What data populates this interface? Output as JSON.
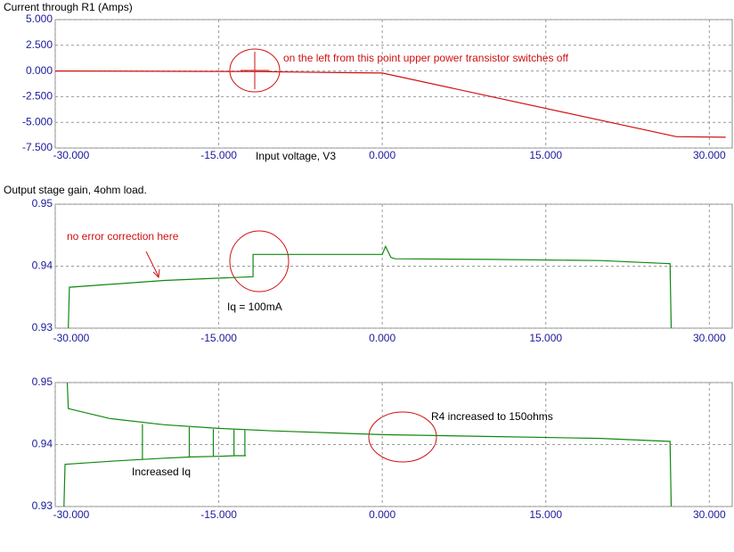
{
  "chart_data": [
    {
      "type": "line",
      "title": "Current through R1 (Amps)",
      "xlabel": "Input voltage, V3",
      "xlim": [
        -30,
        32.1
      ],
      "ylim": [
        -7.5,
        5
      ],
      "grid": true,
      "xticks": [
        {
          "value": -30,
          "label": "-30.000"
        },
        {
          "value": -15,
          "label": "-15.000"
        },
        {
          "value": 0,
          "label": "0.000"
        },
        {
          "value": 15,
          "label": "15.000"
        },
        {
          "value": 30,
          "label": "30.000"
        }
      ],
      "yticks": [
        {
          "value": 5,
          "label": "5.000"
        },
        {
          "value": 2.5,
          "label": "2.500"
        },
        {
          "value": 0,
          "label": "0.000"
        },
        {
          "value": -2.5,
          "label": "-2.500"
        },
        {
          "value": -5,
          "label": "-5.000"
        },
        {
          "value": -7.5,
          "label": "-7.500"
        }
      ],
      "x": [
        -30,
        -12,
        0,
        27,
        31.5
      ],
      "series": [
        {
          "color": "#d01010",
          "values": [
            0,
            -0.05,
            -0.2,
            -6.4,
            -6.45
          ]
        }
      ],
      "annotations": [
        {
          "text": "on the left from this point upper power transistor switches off",
          "color": "#d01010"
        }
      ]
    },
    {
      "type": "line",
      "title": "Output  stage gain, 4ohm load.",
      "xlim": [
        -30,
        32.1
      ],
      "ylim": [
        0.93,
        0.95
      ],
      "grid": true,
      "xticks": [
        {
          "value": -30,
          "label": "-30.000"
        },
        {
          "value": -15,
          "label": "-15.000"
        },
        {
          "value": 0,
          "label": "0.000"
        },
        {
          "value": 15,
          "label": "15.000"
        },
        {
          "value": 30,
          "label": "30.000"
        }
      ],
      "yticks": [
        0.95,
        0.94,
        0.93
      ],
      "x": [
        -28.8,
        -28.7,
        -20,
        -11.85,
        -11.85,
        -5,
        0,
        0.3,
        0.8,
        1.2,
        10,
        20,
        26.4,
        26.5
      ],
      "series": [
        {
          "color": "#118811",
          "values": [
            0.93,
            0.9366,
            0.9377,
            0.9383,
            0.9419,
            0.9419,
            0.9419,
            0.9432,
            0.9414,
            0.9412,
            0.9411,
            0.9409,
            0.9404,
            0.93
          ]
        }
      ],
      "annotations": [
        {
          "text": "no error correction here",
          "color": "#d01010"
        },
        {
          "text": "Iq = 100mA",
          "color": "#000000"
        }
      ]
    },
    {
      "type": "line",
      "xlim": [
        -30,
        32.1
      ],
      "ylim": [
        0.93,
        0.95
      ],
      "grid": true,
      "xticks": [
        {
          "value": -30,
          "label": "-30.000"
        },
        {
          "value": -15,
          "label": "-15.000"
        },
        {
          "value": 0,
          "label": "0.000"
        },
        {
          "value": 15,
          "label": "15.000"
        },
        {
          "value": 30,
          "label": "30.000"
        }
      ],
      "yticks": [
        0.95,
        0.94,
        0.93
      ],
      "series": [
        {
          "color": "#118811",
          "x": [
            -28.9,
            -28.8,
            -25,
            -20,
            -15,
            -10,
            0,
            10,
            20,
            26.4,
            26.5
          ],
          "values": [
            0.95,
            0.9458,
            0.9442,
            0.9432,
            0.9426,
            0.9422,
            0.9416,
            0.9413,
            0.941,
            0.9405,
            0.93
          ]
        },
        {
          "color": "#118811",
          "x": [
            -29.2,
            -29.1,
            -25,
            -22,
            -20,
            -17.5,
            -15,
            -13.5,
            -12.5
          ],
          "values": [
            0.93,
            0.9368,
            0.9373,
            0.9376,
            0.9378,
            0.938,
            0.9381,
            0.9382,
            0.9382
          ]
        },
        {
          "color": "#118811",
          "x": [
            -22,
            -22
          ],
          "values": [
            0.9376,
            0.9433
          ]
        },
        {
          "color": "#118811",
          "x": [
            -17.7,
            -17.7
          ],
          "values": [
            0.938,
            0.9428
          ]
        },
        {
          "color": "#118811",
          "x": [
            -15.5,
            -15.5
          ],
          "values": [
            0.9381,
            0.9425
          ]
        },
        {
          "color": "#118811",
          "x": [
            -13.6,
            -13.6
          ],
          "values": [
            0.9382,
            0.9424
          ]
        },
        {
          "color": "#118811",
          "x": [
            -12.6,
            -12.6
          ],
          "values": [
            0.9382,
            0.9423
          ]
        }
      ],
      "annotations": [
        {
          "text": "Increased Iq",
          "color": "#000000"
        },
        {
          "text": "R4 increased to 150ohms",
          "color": "#000000"
        }
      ]
    }
  ]
}
